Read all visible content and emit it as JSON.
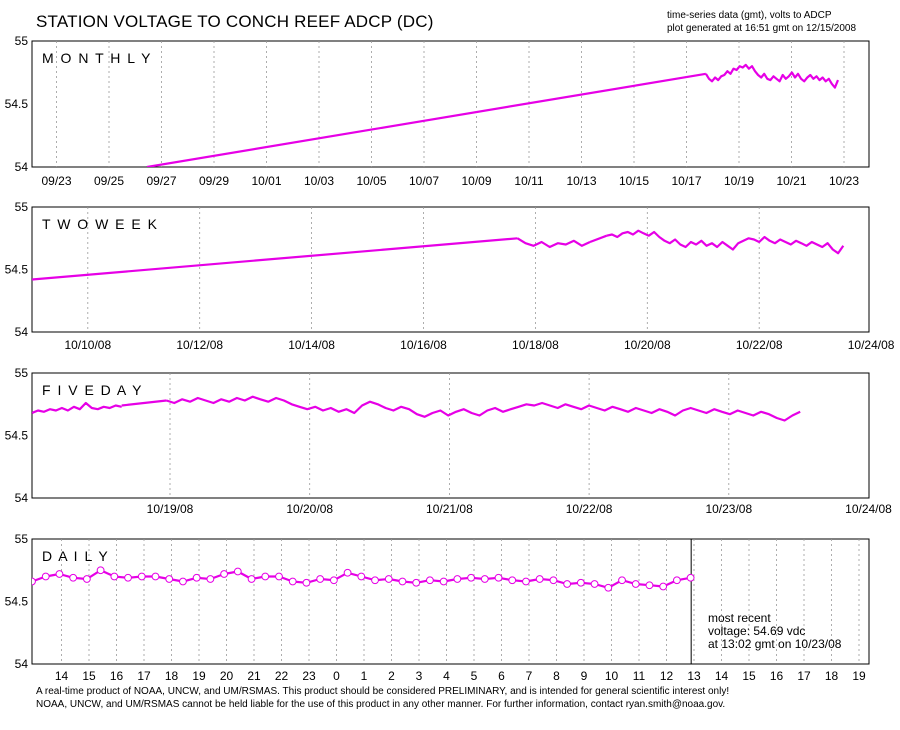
{
  "title": "STATION VOLTAGE TO CONCH REEF ADCP (DC)",
  "meta_line1": "time-series data (gmt), volts to ADCP",
  "meta_line2": "plot generated at 16:51 gmt on 12/15/2008",
  "footer_line1": "A real-time product of NOAA, UNCW, and UM/RSMAS. This product should be considered PRELIMINARY, and is intended for general scientific interest only!",
  "footer_line2": "NOAA, UNCW, and UM/RSMAS cannot be held liable for the use of this product in any other manner.  For further information, contact ryan.smith@noaa.gov.",
  "recent": {
    "line1": "most recent",
    "line2": "voltage: 54.69 vdc",
    "line3": "at 13:02 gmt on 10/23/08"
  },
  "colors": {
    "series": "#e600e6",
    "grid": "#999999",
    "axis": "#000000"
  },
  "chart_data": [
    {
      "type": "line",
      "panel_label": "MONTHLY",
      "ylim": [
        54,
        55
      ],
      "yticks": [
        "54",
        "54.5",
        "55"
      ],
      "x_ticks": [
        "09/23",
        "09/25",
        "09/27",
        "09/29",
        "10/01",
        "10/03",
        "10/05",
        "10/07",
        "10/09",
        "10/11",
        "10/13",
        "10/15",
        "10/17",
        "10/19",
        "10/21",
        "10/23"
      ],
      "x_start_day": -7.6,
      "x_end_day": 23.7,
      "grid": "vertical dotted",
      "series": [
        {
          "x": [
            -3.3,
            17.6
          ],
          "y": [
            54.0,
            54.74
          ]
        },
        {
          "x_start": 17.6,
          "x_end": 22.54,
          "y": [
            54.74,
            54.7,
            54.68,
            54.71,
            54.69,
            54.72,
            54.73,
            54.76,
            54.74,
            54.78,
            54.77,
            54.8,
            54.79,
            54.81,
            54.78,
            54.8,
            54.76,
            54.73,
            54.71,
            54.74,
            54.7,
            54.69,
            54.72,
            54.7,
            54.68,
            54.73,
            54.7,
            54.72,
            54.75,
            54.71,
            54.74,
            54.7,
            54.68,
            54.71,
            54.73,
            54.7,
            54.72,
            54.69,
            54.71,
            54.68,
            54.7,
            54.66,
            54.63,
            54.69
          ]
        }
      ]
    },
    {
      "type": "line",
      "panel_label": "TWO WEEK",
      "ylim": [
        54,
        55
      ],
      "yticks": [
        "54",
        "54.5",
        "55"
      ],
      "x_ticks": [
        "10/10/08",
        "10/12/08",
        "10/14/08",
        "10/16/08",
        "10/18/08",
        "10/20/08",
        "10/22/08",
        "10/24/08"
      ],
      "x_start_day": 9.0,
      "x_end_day": 24.0,
      "grid": "vertical dotted",
      "series": [
        {
          "x": [
            9.0,
            17.7
          ],
          "y": [
            54.42,
            54.75
          ]
        },
        {
          "x_start": 17.7,
          "x_end": 19.0,
          "y": [
            54.75,
            54.71,
            54.69,
            54.72,
            54.68,
            54.71,
            54.7,
            54.73,
            54.69,
            54.72
          ]
        },
        {
          "x": [
            19.0,
            19.3
          ],
          "y": [
            54.72,
            54.77
          ]
        },
        {
          "x_start": 19.3,
          "x_end": 23.54,
          "y": [
            54.77,
            54.78,
            54.76,
            54.79,
            54.8,
            54.78,
            54.81,
            54.79,
            54.77,
            54.8,
            54.76,
            54.73,
            54.71,
            54.74,
            54.7,
            54.68,
            54.72,
            54.7,
            54.73,
            54.69,
            54.71,
            54.68,
            54.72,
            54.69,
            54.66,
            54.71,
            54.73,
            54.75,
            54.74,
            54.72,
            54.76,
            54.73,
            54.71,
            54.74,
            54.72,
            54.7,
            54.73,
            54.71,
            54.69,
            54.72,
            54.7,
            54.68,
            54.71,
            54.66,
            54.63,
            54.69
          ]
        }
      ]
    },
    {
      "type": "line",
      "panel_label": "FIVE DAY",
      "ylim": [
        54,
        55
      ],
      "yticks": [
        "54",
        "54.5",
        "55"
      ],
      "x_ticks": [
        "10/19/08",
        "10/20/08",
        "10/21/08",
        "10/22/08",
        "10/23/08",
        "10/24/08"
      ],
      "x_start_day": 18.4,
      "x_end_day": 24.0,
      "grid": "vertical dotted",
      "series": [
        {
          "x_start": 18.4,
          "x_end": 19.0,
          "y": [
            54.68,
            54.7,
            54.69,
            54.71,
            54.7,
            54.72,
            54.7,
            54.73,
            54.71,
            54.76,
            54.72,
            54.71,
            54.73,
            54.72,
            54.74,
            54.73
          ]
        },
        {
          "x": [
            19.0,
            19.3
          ],
          "y": [
            54.74,
            54.78
          ]
        },
        {
          "x_start": 19.3,
          "x_end": 23.54,
          "y": [
            54.78,
            54.76,
            54.79,
            54.77,
            54.8,
            54.78,
            54.76,
            54.79,
            54.77,
            54.8,
            54.78,
            54.81,
            54.79,
            54.77,
            54.8,
            54.78,
            54.75,
            54.73,
            54.71,
            54.73,
            54.7,
            54.72,
            54.69,
            54.71,
            54.68,
            54.74,
            54.77,
            54.75,
            54.72,
            54.7,
            54.73,
            54.71,
            54.67,
            54.65,
            54.68,
            54.7,
            54.66,
            54.69,
            54.71,
            54.68,
            54.66,
            54.7,
            54.72,
            54.69,
            54.71,
            54.73,
            54.75,
            54.74,
            54.76,
            54.74,
            54.72,
            54.75,
            54.73,
            54.71,
            54.74,
            54.72,
            54.7,
            54.73,
            54.71,
            54.69,
            54.72,
            54.7,
            54.68,
            54.71,
            54.69,
            54.66,
            54.7,
            54.72,
            54.7,
            54.68,
            54.71,
            54.69,
            54.67,
            54.7,
            54.68,
            54.66,
            54.69,
            54.67,
            54.64,
            54.62,
            54.66,
            54.69
          ]
        }
      ]
    },
    {
      "type": "line",
      "panel_label": "DAILY",
      "ylim": [
        54,
        55
      ],
      "yticks": [
        "54",
        "54.5",
        "55"
      ],
      "x_ticks": [
        "14",
        "15",
        "16",
        "17",
        "18",
        "19",
        "20",
        "21",
        "22",
        "23",
        "0",
        "1",
        "2",
        "3",
        "4",
        "5",
        "6",
        "7",
        "8",
        "9",
        "10",
        "11",
        "12",
        "13",
        "14",
        "15",
        "16",
        "17",
        "18",
        "19"
      ],
      "x_start_hour": 13.0,
      "x_end_hour": 43.5,
      "now_hour": 37.02,
      "grid": "vertical dotted",
      "markers": "open circles",
      "series": [
        {
          "x_start": 13.0,
          "x_end": 37.0,
          "y": [
            54.66,
            54.7,
            54.72,
            54.69,
            54.68,
            54.75,
            54.7,
            54.69,
            54.7,
            54.7,
            54.68,
            54.66,
            54.69,
            54.68,
            54.72,
            54.74,
            54.68,
            54.7,
            54.7,
            54.66,
            54.65,
            54.68,
            54.67,
            54.73,
            54.7,
            54.67,
            54.68,
            54.66,
            54.65,
            54.67,
            54.66,
            54.68,
            54.69,
            54.68,
            54.69,
            54.67,
            54.66,
            54.68,
            54.67,
            54.64,
            54.65,
            54.64,
            54.61,
            54.67,
            54.64,
            54.63,
            54.62,
            54.67,
            54.69
          ]
        }
      ]
    }
  ]
}
